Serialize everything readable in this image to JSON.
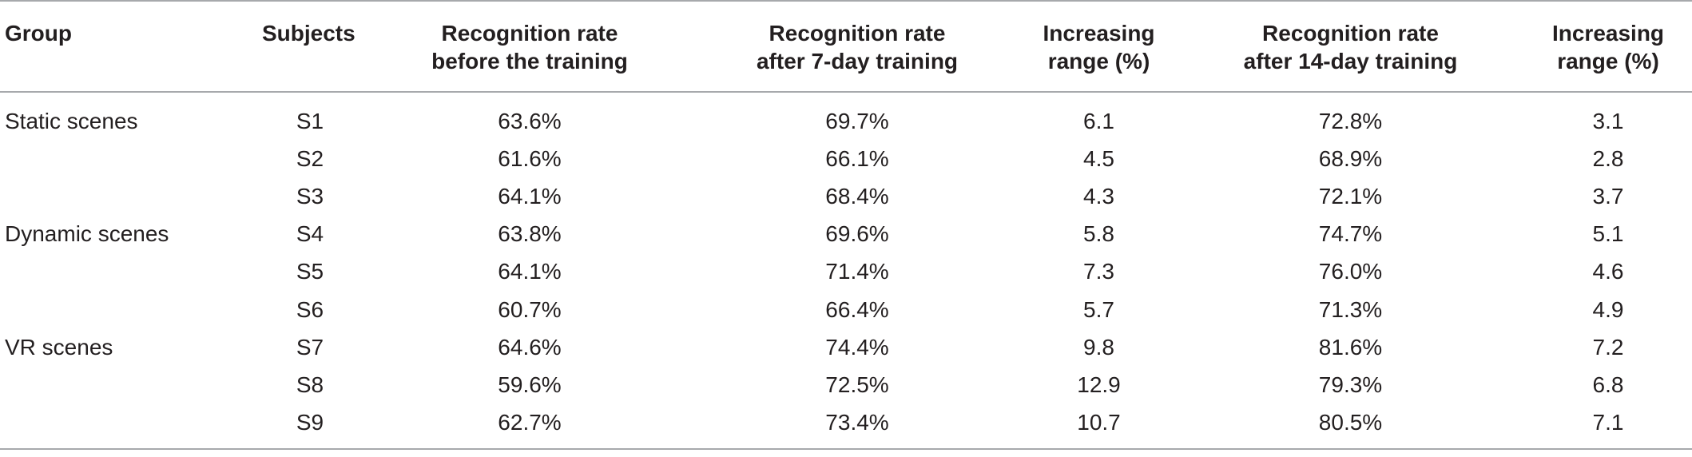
{
  "table": {
    "headers": {
      "group": "Group",
      "subjects": "Subjects",
      "before": [
        "Recognition rate",
        "before the training"
      ],
      "after7": [
        "Recognition rate",
        "after 7-day training"
      ],
      "inc1": [
        "Increasing",
        "range (%)"
      ],
      "after14": [
        "Recognition rate",
        "after 14-day training"
      ],
      "inc2": [
        "Increasing",
        "range (%)"
      ]
    },
    "rows": [
      {
        "group": "Static scenes",
        "subject": "S1",
        "before": "63.6%",
        "after7": "69.7%",
        "inc1": "6.1",
        "after14": "72.8%",
        "inc2": "3.1"
      },
      {
        "group": "",
        "subject": "S2",
        "before": "61.6%",
        "after7": "66.1%",
        "inc1": "4.5",
        "after14": "68.9%",
        "inc2": "2.8"
      },
      {
        "group": "",
        "subject": "S3",
        "before": "64.1%",
        "after7": "68.4%",
        "inc1": "4.3",
        "after14": "72.1%",
        "inc2": "3.7"
      },
      {
        "group": "Dynamic scenes",
        "subject": "S4",
        "before": "63.8%",
        "after7": "69.6%",
        "inc1": "5.8",
        "after14": "74.7%",
        "inc2": "5.1"
      },
      {
        "group": "",
        "subject": "S5",
        "before": "64.1%",
        "after7": "71.4%",
        "inc1": "7.3",
        "after14": "76.0%",
        "inc2": "4.6"
      },
      {
        "group": "",
        "subject": "S6",
        "before": "60.7%",
        "after7": "66.4%",
        "inc1": "5.7",
        "after14": "71.3%",
        "inc2": "4.9"
      },
      {
        "group": "VR scenes",
        "subject": "S7",
        "before": "64.6%",
        "after7": "74.4%",
        "inc1": "9.8",
        "after14": "81.6%",
        "inc2": "7.2"
      },
      {
        "group": "",
        "subject": "S8",
        "before": "59.6%",
        "after7": "72.5%",
        "inc1": "12.9",
        "after14": "79.3%",
        "inc2": "6.8"
      },
      {
        "group": "",
        "subject": "S9",
        "before": "62.7%",
        "after7": "73.4%",
        "inc1": "10.7",
        "after14": "80.5%",
        "inc2": "7.1"
      }
    ]
  }
}
